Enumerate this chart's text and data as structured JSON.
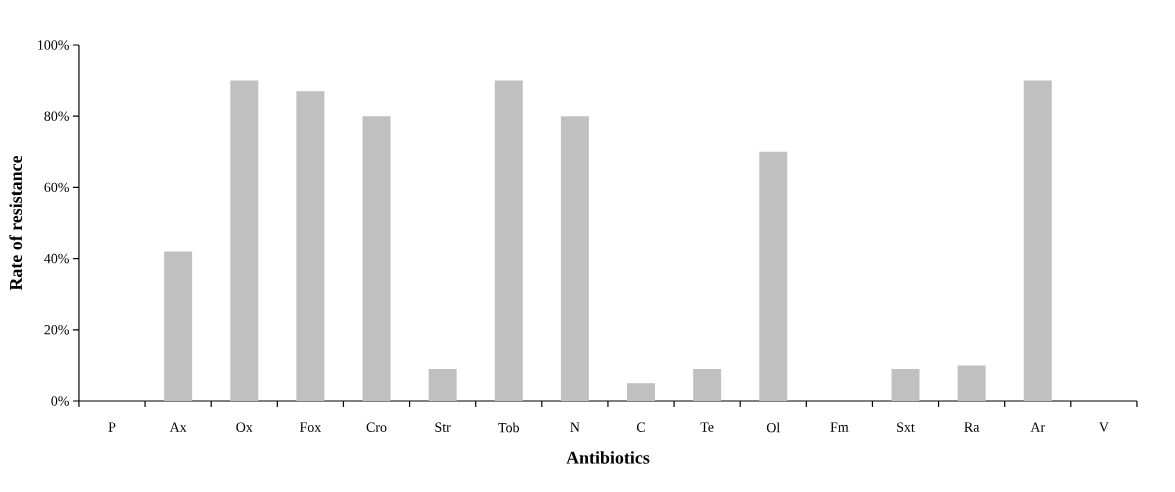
{
  "chart_data": {
    "type": "bar",
    "xlabel": "Antibiotics",
    "ylabel": "Rate of resistance",
    "categories": [
      "P",
      "Ax",
      "Ox",
      "Fox",
      "Cro",
      "Str",
      "Tob",
      "N",
      "C",
      "Te",
      "Ol",
      "Fm",
      "Sxt",
      "Ra",
      "Ar",
      "V"
    ],
    "values": [
      0,
      42,
      90,
      87,
      80,
      9,
      90,
      80,
      5,
      9,
      70,
      0,
      9,
      10,
      90,
      0
    ],
    "color": "#c0c0c0",
    "ylim": [
      0,
      100
    ],
    "yticks": [
      {
        "value": 0,
        "label": "0%"
      },
      {
        "value": 20,
        "label": "20%"
      },
      {
        "value": 40,
        "label": "40%"
      },
      {
        "value": 60,
        "label": "60%"
      },
      {
        "value": 80,
        "label": "80%"
      },
      {
        "value": 100,
        "label": "100%"
      }
    ],
    "grid": false
  }
}
